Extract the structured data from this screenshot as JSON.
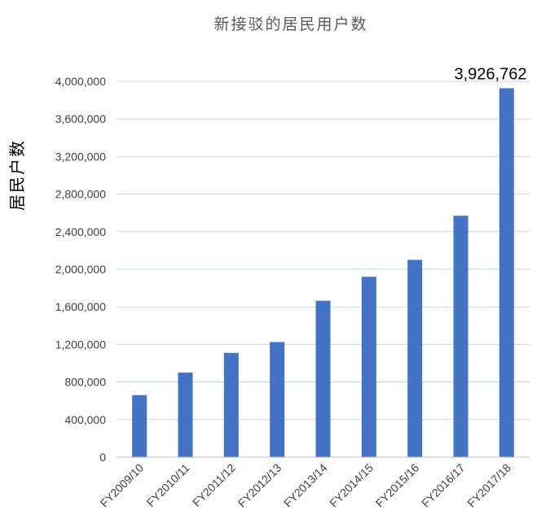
{
  "chart_data": {
    "type": "bar",
    "title": "新接驳的居民用户数",
    "ylabel": "居民户数",
    "xlabel": "",
    "categories": [
      "FY2009/10",
      "FY2010/11",
      "FY2011/12",
      "FY2012/13",
      "FY2013/14",
      "FY2014/15",
      "FY2015/16",
      "FY2016/17",
      "FY2017/18"
    ],
    "values": [
      660000,
      900000,
      1110000,
      1225000,
      1665000,
      1920000,
      2100000,
      2570000,
      3926762
    ],
    "yticks": [
      "0",
      "400,000",
      "800,000",
      "1,200,000",
      "1,600,000",
      "2,000,000",
      "2,400,000",
      "2,800,000",
      "3,200,000",
      "3,600,000",
      "4,000,000"
    ],
    "ylim": [
      0,
      4000000
    ],
    "data_labels": [
      {
        "index": 8,
        "text": "3,926,762"
      }
    ],
    "grid": true,
    "legend": false,
    "bar_color": "#4472c4"
  }
}
